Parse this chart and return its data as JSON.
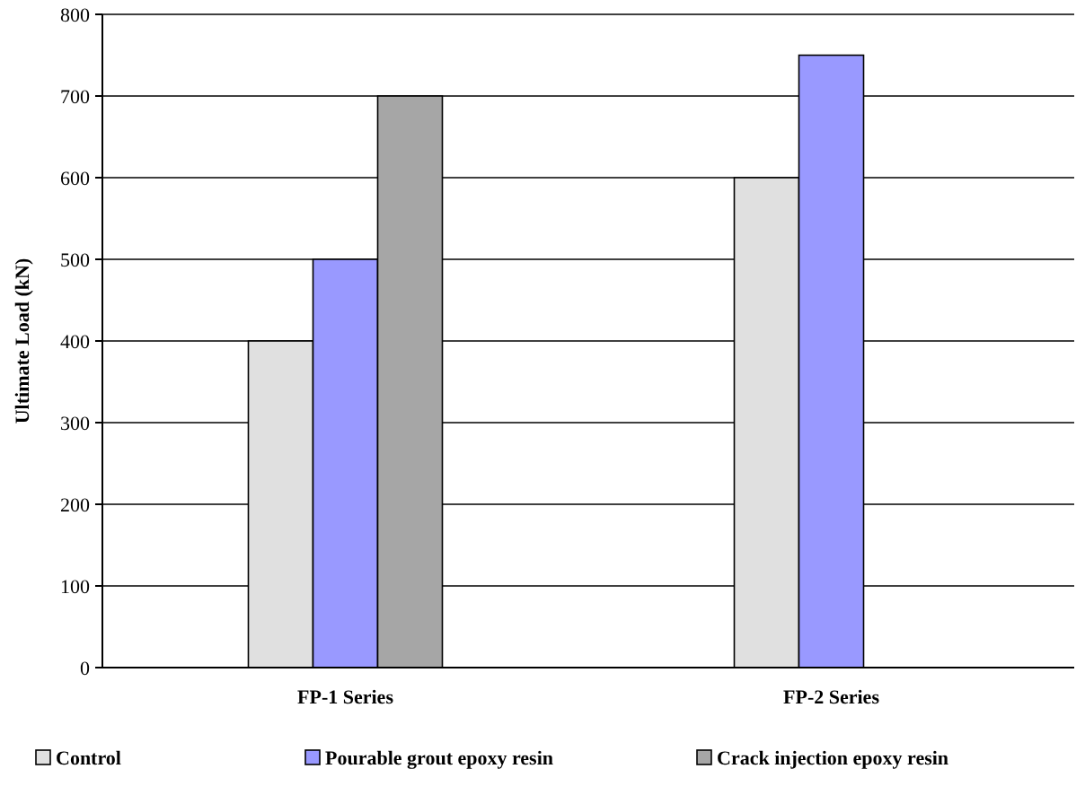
{
  "chart_data": {
    "type": "bar",
    "ylabel": "Ultimate Load (kN)",
    "categories": [
      "FP-1 Series",
      "FP-2 Series"
    ],
    "series": [
      {
        "name": "Control",
        "color": "#e0e0e0",
        "values": [
          400,
          600
        ]
      },
      {
        "name": "Pourable grout epoxy resin",
        "color": "#9999ff",
        "values": [
          500,
          750
        ]
      },
      {
        "name": "Crack injection epoxy resin",
        "color": "#a6a6a6",
        "values": [
          700,
          null
        ]
      }
    ],
    "ylim": [
      0,
      800
    ],
    "yticks": [
      0,
      100,
      200,
      300,
      400,
      500,
      600,
      700,
      800
    ],
    "grid": "y",
    "legend": "bottom"
  }
}
